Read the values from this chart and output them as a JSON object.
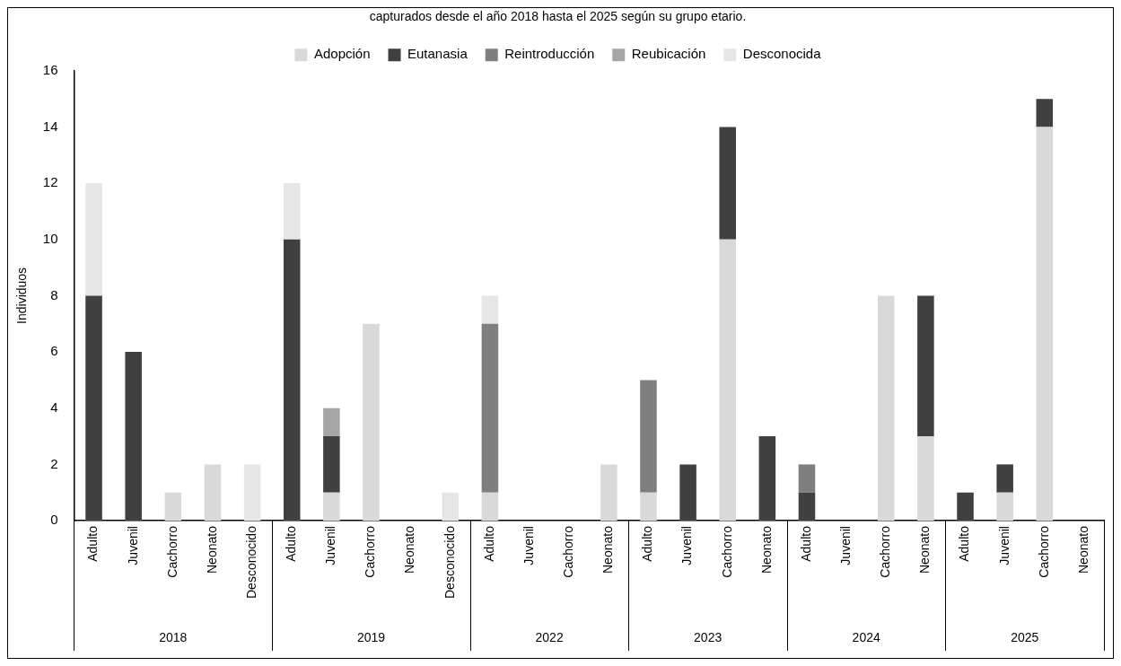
{
  "chart_data": {
    "type": "bar",
    "title": "capturados desde el año 2018 hasta el 2025 según su grupo etario.",
    "ylabel": "Individuos",
    "categories": [
      "Adulto",
      "Juvenil",
      "Cachorro",
      "Neonato",
      "Desconocido",
      "Adulto",
      "Juvenil",
      "Cachorro",
      "Neonato",
      "Desconocido",
      "Adulto",
      "Juvenil",
      "Cachorro",
      "Neonato",
      "Adulto",
      "Juvenil",
      "Cachorro",
      "Neonato",
      "Adulto",
      "Juvenil",
      "Cachorro",
      "Neonato",
      "Adulto",
      "Juvenil",
      "Cachorro",
      "Neonato"
    ],
    "annotations": [
      "2018",
      "2019",
      "2022",
      "2023",
      "2024",
      "2025"
    ],
    "stacked": true,
    "ylim": [
      0,
      16
    ],
    "yticks": [
      0,
      2,
      4,
      6,
      8,
      10,
      12,
      14,
      16
    ],
    "grid": false,
    "legend": "top",
    "series": [
      {
        "name": "Adopción",
        "color": "#d9d9d9",
        "values": [
          0,
          0,
          1,
          2,
          0,
          0,
          1,
          7,
          0,
          0,
          1,
          0,
          0,
          2,
          1,
          0,
          10,
          0,
          0,
          0,
          8,
          3,
          0,
          1,
          14,
          0
        ]
      },
      {
        "name": "Eutanasia",
        "color": "#404040",
        "values": [
          8,
          6,
          0,
          0,
          0,
          10,
          2,
          0,
          0,
          0,
          0,
          0,
          0,
          0,
          0,
          2,
          4,
          3,
          1,
          0,
          0,
          5,
          1,
          1,
          1,
          0
        ]
      },
      {
        "name": "Reintroducción",
        "color": "#7f7f7f",
        "values": [
          0,
          0,
          0,
          0,
          0,
          0,
          0,
          0,
          0,
          0,
          6,
          0,
          0,
          0,
          4,
          0,
          0,
          0,
          1,
          0,
          0,
          0,
          0,
          0,
          0,
          0
        ]
      },
      {
        "name": "Reubicación",
        "color": "#a6a6a6",
        "values": [
          0,
          0,
          0,
          0,
          0,
          0,
          1,
          0,
          0,
          0,
          0,
          0,
          0,
          0,
          0,
          0,
          0,
          0,
          0,
          0,
          0,
          0,
          0,
          0,
          0,
          0
        ]
      },
      {
        "name": "Desconocida",
        "color": "#e6e6e6",
        "values": [
          4,
          0,
          0,
          0,
          2,
          2,
          0,
          0,
          0,
          1,
          1,
          0,
          0,
          0,
          0,
          0,
          0,
          0,
          0,
          0,
          0,
          0,
          0,
          0,
          0,
          0
        ]
      }
    ]
  }
}
